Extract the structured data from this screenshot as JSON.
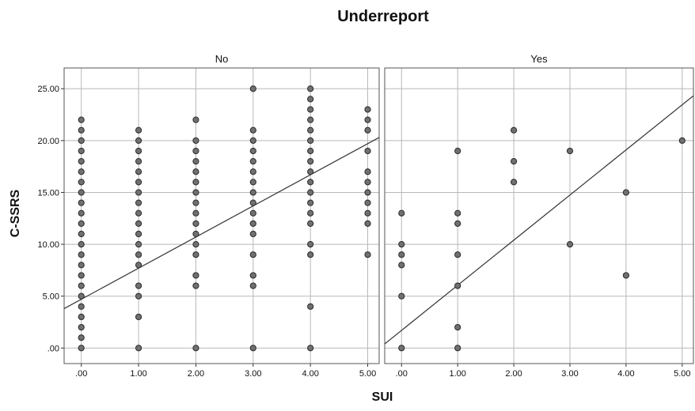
{
  "chart_data": {
    "type": "scatter",
    "title": "Underreport",
    "xlabel": "SUI",
    "ylabel": "C-SSRS",
    "xlim": [
      -0.3,
      5.2
    ],
    "ylim": [
      -1.5,
      27.0
    ],
    "grid": true,
    "x_ticks": [
      0,
      1,
      2,
      3,
      4,
      5
    ],
    "x_tick_labels": [
      ".00",
      "1.00",
      "2.00",
      "3.00",
      "4.00",
      "5.00"
    ],
    "y_ticks": [
      0,
      5,
      10,
      15,
      20,
      25
    ],
    "y_tick_labels": [
      ".00",
      "5.00",
      "10.00",
      "15.00",
      "20.00",
      "25.00"
    ],
    "colors": {
      "point_fill": "#707070",
      "point_stroke": "#2a2a2a",
      "fit_line": "#333333",
      "grid": "#b8b8b8",
      "panel_header": "#e8e8e8"
    },
    "panels": [
      {
        "label": "No",
        "fit_line": {
          "intercept": 4.7,
          "slope": 3.0
        },
        "points": [
          [
            0,
            0
          ],
          [
            0,
            1
          ],
          [
            0,
            2
          ],
          [
            0,
            3
          ],
          [
            0,
            4
          ],
          [
            0,
            5
          ],
          [
            0,
            6
          ],
          [
            0,
            7
          ],
          [
            0,
            8
          ],
          [
            0,
            9
          ],
          [
            0,
            10
          ],
          [
            0,
            11
          ],
          [
            0,
            12
          ],
          [
            0,
            13
          ],
          [
            0,
            14
          ],
          [
            0,
            15
          ],
          [
            0,
            16
          ],
          [
            0,
            17
          ],
          [
            0,
            18
          ],
          [
            0,
            19
          ],
          [
            0,
            20
          ],
          [
            0,
            21
          ],
          [
            0,
            22
          ],
          [
            1,
            0
          ],
          [
            1,
            3
          ],
          [
            1,
            5
          ],
          [
            1,
            6
          ],
          [
            1,
            8
          ],
          [
            1,
            9
          ],
          [
            1,
            10
          ],
          [
            1,
            11
          ],
          [
            1,
            12
          ],
          [
            1,
            13
          ],
          [
            1,
            14
          ],
          [
            1,
            15
          ],
          [
            1,
            16
          ],
          [
            1,
            17
          ],
          [
            1,
            18
          ],
          [
            1,
            19
          ],
          [
            1,
            20
          ],
          [
            1,
            21
          ],
          [
            2,
            0
          ],
          [
            2,
            6
          ],
          [
            2,
            7
          ],
          [
            2,
            9
          ],
          [
            2,
            10
          ],
          [
            2,
            11
          ],
          [
            2,
            12
          ],
          [
            2,
            13
          ],
          [
            2,
            14
          ],
          [
            2,
            15
          ],
          [
            2,
            16
          ],
          [
            2,
            17
          ],
          [
            2,
            18
          ],
          [
            2,
            19
          ],
          [
            2,
            20
          ],
          [
            2,
            22
          ],
          [
            3,
            0
          ],
          [
            3,
            6
          ],
          [
            3,
            7
          ],
          [
            3,
            9
          ],
          [
            3,
            11
          ],
          [
            3,
            12
          ],
          [
            3,
            13
          ],
          [
            3,
            14
          ],
          [
            3,
            15
          ],
          [
            3,
            16
          ],
          [
            3,
            17
          ],
          [
            3,
            18
          ],
          [
            3,
            19
          ],
          [
            3,
            20
          ],
          [
            3,
            21
          ],
          [
            3,
            25
          ],
          [
            4,
            0
          ],
          [
            4,
            4
          ],
          [
            4,
            9
          ],
          [
            4,
            10
          ],
          [
            4,
            12
          ],
          [
            4,
            13
          ],
          [
            4,
            14
          ],
          [
            4,
            15
          ],
          [
            4,
            16
          ],
          [
            4,
            17
          ],
          [
            4,
            18
          ],
          [
            4,
            19
          ],
          [
            4,
            20
          ],
          [
            4,
            21
          ],
          [
            4,
            22
          ],
          [
            4,
            23
          ],
          [
            4,
            24
          ],
          [
            4,
            25
          ],
          [
            5,
            9
          ],
          [
            5,
            12
          ],
          [
            5,
            13
          ],
          [
            5,
            14
          ],
          [
            5,
            15
          ],
          [
            5,
            16
          ],
          [
            5,
            17
          ],
          [
            5,
            19
          ],
          [
            5,
            21
          ],
          [
            5,
            22
          ],
          [
            5,
            23
          ]
        ]
      },
      {
        "label": "Yes",
        "fit_line": {
          "intercept": 1.7,
          "slope": 4.35
        },
        "points": [
          [
            0,
            0
          ],
          [
            0,
            5
          ],
          [
            0,
            8
          ],
          [
            0,
            9
          ],
          [
            0,
            10
          ],
          [
            0,
            13
          ],
          [
            1,
            0
          ],
          [
            1,
            2
          ],
          [
            1,
            6
          ],
          [
            1,
            9
          ],
          [
            1,
            12
          ],
          [
            1,
            13
          ],
          [
            1,
            19
          ],
          [
            2,
            16
          ],
          [
            2,
            18
          ],
          [
            2,
            21
          ],
          [
            3,
            10
          ],
          [
            3,
            19
          ],
          [
            4,
            7
          ],
          [
            4,
            15
          ],
          [
            5,
            20
          ]
        ]
      }
    ]
  }
}
